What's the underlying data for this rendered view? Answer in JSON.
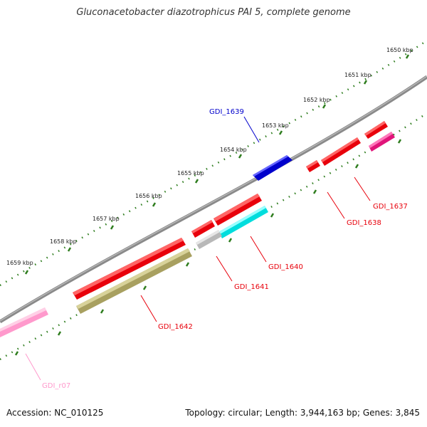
{
  "title": "Gluconacetobacter diazotrophicus PAI 5, complete genome",
  "footer": {
    "accession": "Accession: NC_010125",
    "summary": "Topology: circular; Length: 3,944,163 bp; Genes: 3,845"
  },
  "colors": {
    "backbone": "#888888",
    "tick": "#2e7d1e",
    "gene_red": "#e8000b",
    "gene_blue": "#0000cc",
    "gene_cyan": "#00dddd",
    "gene_grey": "#b8b8b8",
    "gene_olive": "#a8a060",
    "gene_magenta": "#e0157a",
    "gene_pink": "#ff99cc"
  },
  "ticks": [
    "1650 kbp",
    "1651 kbp",
    "1652 kbp",
    "1653 kbp",
    "1654 kbp",
    "1655 kbp",
    "1656 kbp",
    "1657 kbp",
    "1658 kbp",
    "1659 kbp"
  ],
  "gene_labels": {
    "gdi_1637": "GDI_1637",
    "gdi_1638": "GDI_1638",
    "gdi_1639": "GDI_1639",
    "gdi_1640": "GDI_1640",
    "gdi_1641": "GDI_1641",
    "gdi_1642": "GDI_1642",
    "gdi_r07": "GDI_r07"
  }
}
